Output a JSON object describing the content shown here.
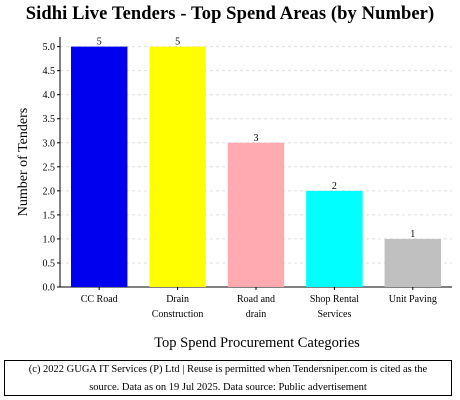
{
  "chart_data": {
    "type": "bar",
    "title": "Sidhi Live Tenders - Top Spend Areas (by Number)",
    "xlabel": "Top Spend Procurement Categories",
    "ylabel": "Number of Tenders",
    "categories": [
      [
        "CC Road"
      ],
      [
        "Drain",
        "Construction"
      ],
      [
        "Road and",
        "drain"
      ],
      [
        "Shop Rental",
        "Services"
      ],
      [
        "Unit Paving"
      ]
    ],
    "values": [
      5,
      5,
      3,
      2,
      1
    ],
    "data_labels": [
      "5",
      "5",
      "3",
      "2",
      "1"
    ],
    "bar_colors": [
      "#0000ee",
      "#ffff00",
      "#ffaab0",
      "#00ffff",
      "#c0c0c0"
    ],
    "ylim": [
      0,
      5.2
    ],
    "yticks": [
      "0.0",
      "0.5",
      "1.0",
      "1.5",
      "2.0",
      "2.5",
      "3.0",
      "3.5",
      "4.0",
      "4.5",
      "5.0"
    ],
    "grid": true
  },
  "footer": {
    "line1": "(c) 2022 GUGA IT Services (P) Ltd | Reuse is permitted when Tendersniper.com is cited as the",
    "line2": "source. Data as on 19 Jul 2025. Data source: Public advertisement"
  }
}
